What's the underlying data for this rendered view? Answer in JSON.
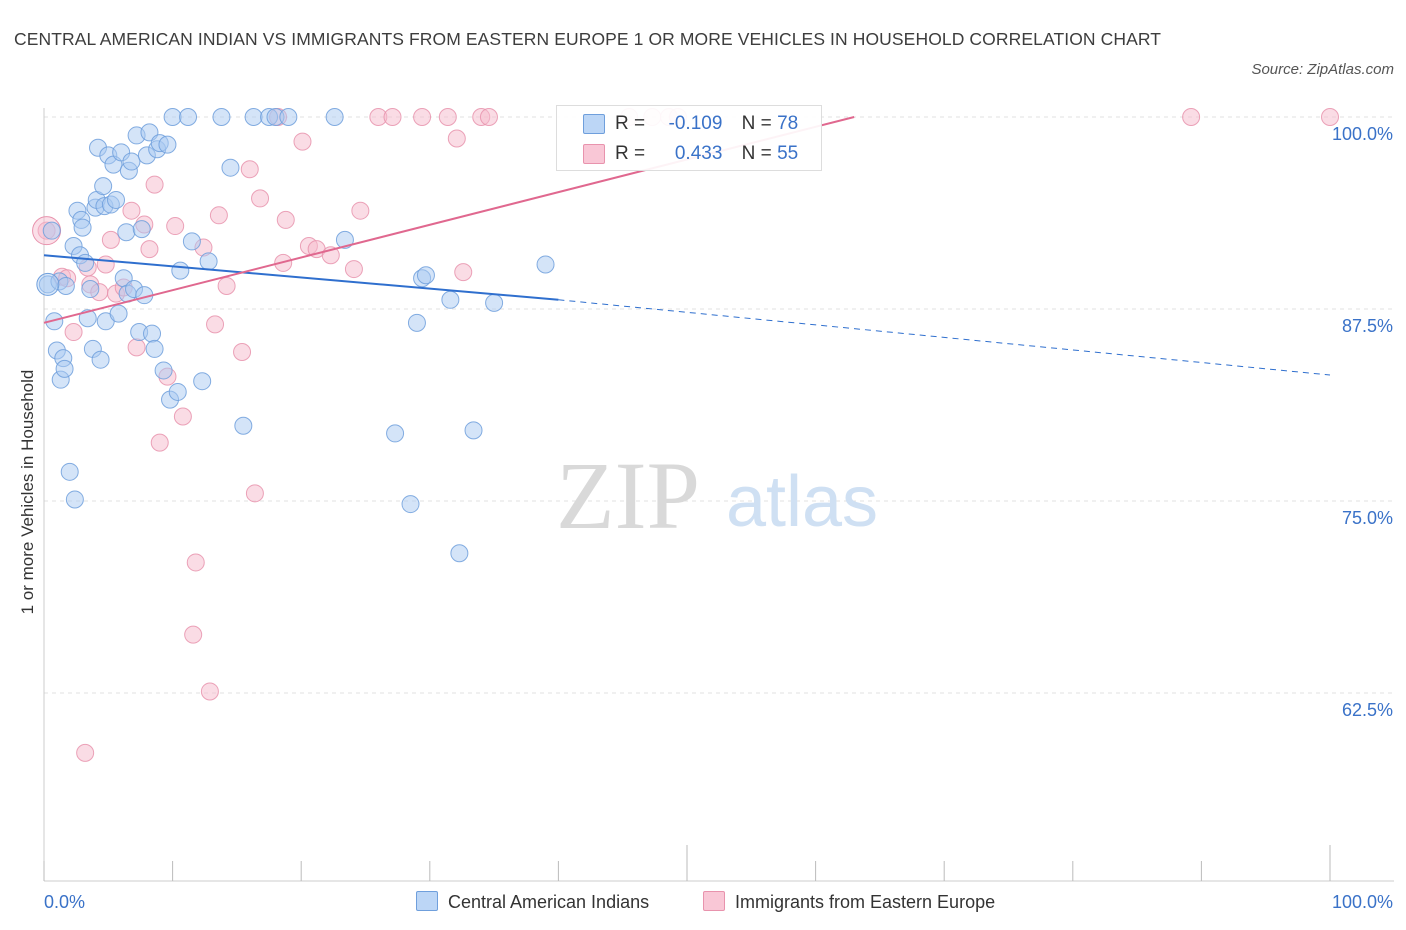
{
  "title": "CENTRAL AMERICAN INDIAN VS IMMIGRANTS FROM EASTERN EUROPE 1 OR MORE VEHICLES IN HOUSEHOLD CORRELATION CHART",
  "source": "Source: ZipAtlas.com",
  "watermark": {
    "zip": "ZIP",
    "atlas": "atlas"
  },
  "legend_top": {
    "rows": [
      {
        "r_label": "R =",
        "r_value": "-0.109",
        "n_label": "N =",
        "n_value": "78"
      },
      {
        "r_label": "R =",
        "r_value": "0.433",
        "n_label": "N =",
        "n_value": "55"
      }
    ]
  },
  "colors": {
    "blue_fill": "#a9c9f2",
    "blue_stroke": "#6f9fdc",
    "blue_line": "#2f6fce",
    "pink_fill": "#f6b9cc",
    "pink_stroke": "#e893ad",
    "pink_line": "#e0688f",
    "axis_text": "#3a72c8",
    "grid": "#e2e2e2"
  },
  "chart_data": {
    "type": "scatter",
    "title": "CENTRAL AMERICAN INDIAN VS IMMIGRANTS FROM EASTERN EUROPE 1 OR MORE VEHICLES IN HOUSEHOLD CORRELATION CHART",
    "xlabel": "",
    "ylabel": "1 or more Vehicles in Household",
    "xlim": [
      0,
      100
    ],
    "ylim": [
      50,
      100
    ],
    "x_tick_labels": [
      "0.0%",
      "100.0%"
    ],
    "y_ticks": [
      {
        "value": 100,
        "label": "100.0%"
      },
      {
        "value": 87.5,
        "label": "87.5%"
      },
      {
        "value": 75,
        "label": "75.0%"
      },
      {
        "value": 62.5,
        "label": "62.5%"
      }
    ],
    "grid": true,
    "legend_position": "bottom",
    "series": [
      {
        "name": "Central American Indians",
        "color": "#a9c9f2",
        "r": -0.109,
        "n": 78,
        "trend": {
          "x0": 0,
          "y0": 91.0,
          "x1": 40,
          "y1": 88.1,
          "dashed_to_x": 100,
          "dashed_to_y": 83.2
        },
        "points": [
          [
            0.3,
            89.1
          ],
          [
            0.6,
            92.6
          ],
          [
            0.8,
            86.7
          ],
          [
            1.0,
            84.8
          ],
          [
            1.2,
            89.3
          ],
          [
            1.3,
            82.9
          ],
          [
            1.5,
            84.3
          ],
          [
            1.7,
            89.0
          ],
          [
            1.6,
            83.6
          ],
          [
            2.0,
            76.9
          ],
          [
            2.3,
            91.6
          ],
          [
            2.4,
            75.1
          ],
          [
            2.6,
            93.9
          ],
          [
            2.8,
            91.0
          ],
          [
            2.9,
            93.3
          ],
          [
            3.0,
            92.8
          ],
          [
            3.2,
            90.5
          ],
          [
            3.4,
            86.9
          ],
          [
            3.6,
            88.8
          ],
          [
            3.8,
            84.9
          ],
          [
            4.0,
            94.1
          ],
          [
            4.1,
            94.6
          ],
          [
            4.2,
            98.0
          ],
          [
            4.4,
            84.2
          ],
          [
            4.6,
            95.5
          ],
          [
            4.7,
            94.2
          ],
          [
            4.8,
            86.7
          ],
          [
            5.0,
            97.5
          ],
          [
            5.2,
            94.3
          ],
          [
            5.4,
            96.9
          ],
          [
            5.6,
            94.6
          ],
          [
            5.8,
            87.2
          ],
          [
            6.0,
            97.7
          ],
          [
            6.2,
            89.5
          ],
          [
            6.4,
            92.5
          ],
          [
            6.5,
            88.5
          ],
          [
            6.6,
            96.5
          ],
          [
            6.8,
            97.1
          ],
          [
            7.0,
            88.8
          ],
          [
            7.2,
            98.8
          ],
          [
            7.4,
            86.0
          ],
          [
            7.6,
            92.7
          ],
          [
            7.8,
            88.4
          ],
          [
            8.0,
            97.5
          ],
          [
            8.2,
            99.0
          ],
          [
            8.4,
            85.9
          ],
          [
            8.6,
            84.9
          ],
          [
            8.8,
            97.9
          ],
          [
            9.0,
            98.3
          ],
          [
            9.3,
            83.5
          ],
          [
            9.6,
            98.2
          ],
          [
            9.8,
            81.6
          ],
          [
            10.0,
            100.0
          ],
          [
            10.4,
            82.1
          ],
          [
            10.6,
            90.0
          ],
          [
            11.2,
            100.0
          ],
          [
            11.5,
            91.9
          ],
          [
            12.3,
            82.8
          ],
          [
            12.8,
            90.6
          ],
          [
            13.8,
            100.0
          ],
          [
            14.5,
            96.7
          ],
          [
            15.5,
            79.9
          ],
          [
            16.3,
            100.0
          ],
          [
            17.5,
            100.0
          ],
          [
            18.0,
            100.0
          ],
          [
            19.0,
            100.0
          ],
          [
            22.6,
            100.0
          ],
          [
            23.4,
            92.0
          ],
          [
            27.3,
            79.4
          ],
          [
            28.5,
            74.8
          ],
          [
            29.4,
            89.5
          ],
          [
            29.7,
            89.7
          ],
          [
            29.0,
            86.6
          ],
          [
            31.6,
            88.1
          ],
          [
            32.3,
            71.6
          ],
          [
            33.4,
            79.6
          ],
          [
            35.0,
            87.9
          ],
          [
            39.0,
            90.4
          ]
        ]
      },
      {
        "name": "Immigrants from Eastern Europe",
        "color": "#f6b9cc",
        "r": 0.433,
        "n": 55,
        "trend": {
          "x0": 0,
          "y0": 86.6,
          "x1": 63,
          "y1": 100.0
        },
        "points": [
          [
            0.2,
            92.6
          ],
          [
            1.4,
            89.6
          ],
          [
            1.8,
            89.5
          ],
          [
            2.3,
            86.0
          ],
          [
            3.2,
            58.6
          ],
          [
            3.4,
            90.2
          ],
          [
            3.6,
            89.1
          ],
          [
            4.3,
            88.6
          ],
          [
            4.8,
            90.4
          ],
          [
            5.2,
            92.0
          ],
          [
            5.6,
            88.5
          ],
          [
            6.2,
            88.9
          ],
          [
            6.8,
            93.9
          ],
          [
            7.2,
            85.0
          ],
          [
            7.8,
            93.0
          ],
          [
            8.2,
            91.4
          ],
          [
            8.6,
            95.6
          ],
          [
            9.0,
            78.8
          ],
          [
            9.6,
            83.1
          ],
          [
            10.2,
            92.9
          ],
          [
            10.8,
            80.5
          ],
          [
            11.6,
            66.3
          ],
          [
            11.8,
            71.0
          ],
          [
            12.4,
            91.5
          ],
          [
            12.9,
            62.6
          ],
          [
            13.3,
            86.5
          ],
          [
            13.6,
            93.6
          ],
          [
            14.2,
            89.0
          ],
          [
            15.4,
            84.7
          ],
          [
            16.0,
            96.6
          ],
          [
            16.4,
            75.5
          ],
          [
            16.8,
            94.7
          ],
          [
            18.2,
            100.0
          ],
          [
            18.6,
            90.5
          ],
          [
            18.8,
            93.3
          ],
          [
            20.1,
            98.4
          ],
          [
            20.6,
            91.6
          ],
          [
            21.2,
            91.4
          ],
          [
            22.3,
            91.0
          ],
          [
            24.1,
            90.1
          ],
          [
            24.6,
            93.9
          ],
          [
            26.0,
            100.0
          ],
          [
            27.1,
            100.0
          ],
          [
            29.4,
            100.0
          ],
          [
            31.4,
            100.0
          ],
          [
            32.1,
            98.6
          ],
          [
            32.6,
            89.9
          ],
          [
            34.0,
            100.0
          ],
          [
            34.6,
            100.0
          ],
          [
            47.3,
            100.0
          ],
          [
            48.6,
            100.0
          ],
          [
            49.3,
            100.0
          ],
          [
            89.2,
            100.0
          ],
          [
            100.0,
            100.0
          ],
          [
            45.5,
            100.0
          ]
        ]
      }
    ]
  }
}
